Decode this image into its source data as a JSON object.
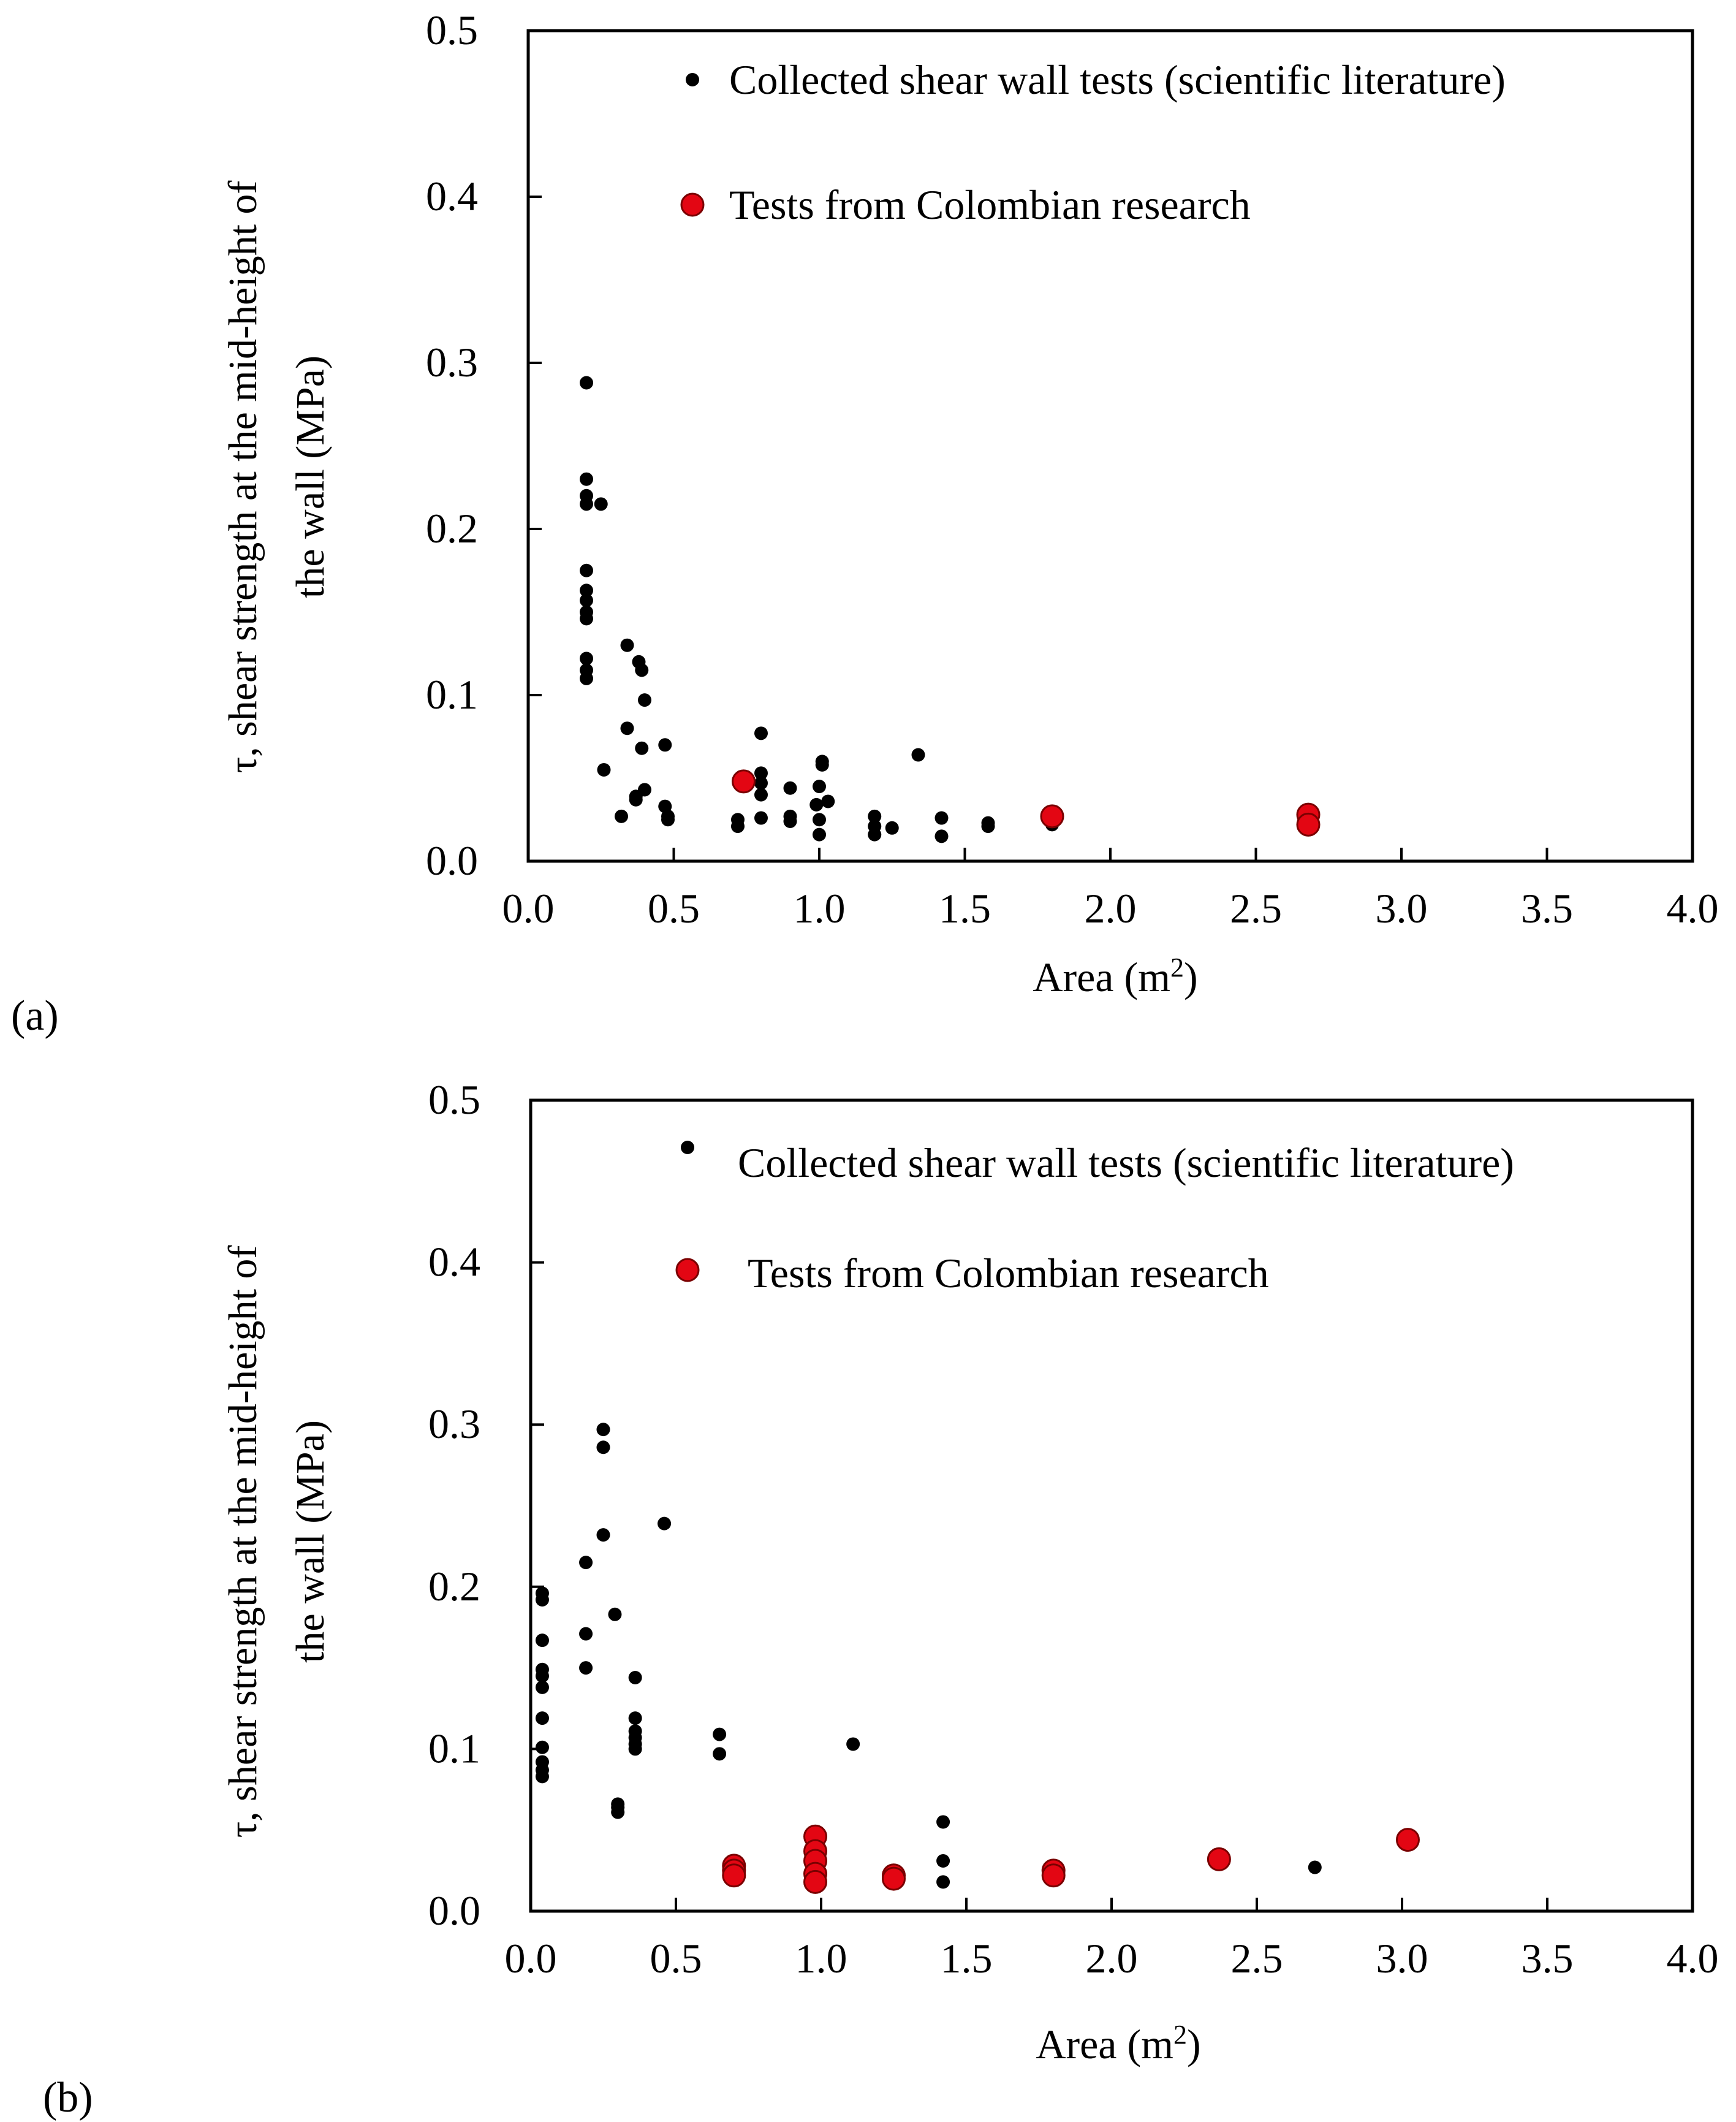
{
  "colors": {
    "literature": "#000000",
    "colombian": "#e30613",
    "colombian_stroke": "#7a0000",
    "axis": "#000000"
  },
  "chart_data": [
    {
      "type": "scatter",
      "panel_label": "(a)",
      "xlabel_text": "Area (m",
      "xlabel_sup": "2",
      "xlabel_close": ")",
      "ylabel_line1": "τ, shear strength at the mid-height of",
      "ylabel_line2": "the wall (MPa)",
      "xlim": [
        0,
        4
      ],
      "ylim": [
        0,
        0.5
      ],
      "x_ticks": [
        "0.0",
        "0.5",
        "1.0",
        "1.5",
        "2.0",
        "2.5",
        "3.0",
        "3.5",
        "4.0"
      ],
      "y_ticks": [
        "0.0",
        "0.1",
        "0.2",
        "0.3",
        "0.4",
        "0.5"
      ],
      "legend": [
        "Collected shear wall tests (scientific literature)",
        "Tests from Colombian research"
      ],
      "series": [
        {
          "name": "Collected shear wall tests (scientific literature)",
          "points": [
            [
              0.2,
              0.288
            ],
            [
              0.2,
              0.23
            ],
            [
              0.2,
              0.22
            ],
            [
              0.2,
              0.215
            ],
            [
              0.25,
              0.215
            ],
            [
              0.2,
              0.175
            ],
            [
              0.2,
              0.163
            ],
            [
              0.2,
              0.157
            ],
            [
              0.2,
              0.15
            ],
            [
              0.2,
              0.146
            ],
            [
              0.2,
              0.122
            ],
            [
              0.2,
              0.115
            ],
            [
              0.2,
              0.11
            ],
            [
              0.34,
              0.13
            ],
            [
              0.38,
              0.12
            ],
            [
              0.39,
              0.115
            ],
            [
              0.4,
              0.097
            ],
            [
              0.34,
              0.08
            ],
            [
              0.39,
              0.068
            ],
            [
              0.47,
              0.07
            ],
            [
              0.26,
              0.055
            ],
            [
              0.4,
              0.043
            ],
            [
              0.37,
              0.039
            ],
            [
              0.37,
              0.037
            ],
            [
              0.47,
              0.033
            ],
            [
              0.32,
              0.027
            ],
            [
              0.48,
              0.027
            ],
            [
              0.48,
              0.025
            ],
            [
              0.72,
              0.025
            ],
            [
              0.72,
              0.021
            ],
            [
              0.8,
              0.077
            ],
            [
              0.8,
              0.053
            ],
            [
              0.8,
              0.047
            ],
            [
              0.8,
              0.04
            ],
            [
              0.8,
              0.026
            ],
            [
              0.9,
              0.044
            ],
            [
              0.9,
              0.027
            ],
            [
              0.9,
              0.024
            ],
            [
              0.99,
              0.034
            ],
            [
              1.0,
              0.045
            ],
            [
              1.0,
              0.025
            ],
            [
              1.0,
              0.016
            ],
            [
              1.01,
              0.06
            ],
            [
              1.01,
              0.058
            ],
            [
              1.03,
              0.036
            ],
            [
              1.19,
              0.027
            ],
            [
              1.19,
              0.021
            ],
            [
              1.19,
              0.016
            ],
            [
              1.25,
              0.02
            ],
            [
              1.34,
              0.064
            ],
            [
              1.42,
              0.026
            ],
            [
              1.42,
              0.015
            ],
            [
              1.58,
              0.023
            ],
            [
              1.58,
              0.021
            ],
            [
              1.8,
              0.025
            ],
            [
              1.8,
              0.022
            ],
            [
              2.68,
              0.024
            ],
            [
              2.68,
              0.021
            ]
          ]
        },
        {
          "name": "Tests from Colombian research",
          "points": [
            [
              0.74,
              0.048
            ],
            [
              1.8,
              0.027
            ],
            [
              2.68,
              0.028
            ],
            [
              2.68,
              0.022
            ]
          ]
        }
      ]
    },
    {
      "type": "scatter",
      "panel_label": "(b)",
      "xlabel_text": "Area (m",
      "xlabel_sup": "2",
      "xlabel_close": ")",
      "ylabel_line1": "τ, shear strength at the mid-height of",
      "ylabel_line2": "the wall (MPa)",
      "xlim": [
        0,
        4
      ],
      "ylim": [
        0,
        0.5
      ],
      "x_ticks": [
        "0.0",
        "0.5",
        "1.0",
        "1.5",
        "2.0",
        "2.5",
        "3.0",
        "3.5",
        "4.0"
      ],
      "y_ticks": [
        "0.0",
        "0.1",
        "0.2",
        "0.3",
        "0.4",
        "0.5"
      ],
      "legend": [
        "Collected shear wall tests (scientific literature)",
        "Tests from Colombian research"
      ],
      "series": [
        {
          "name": "Collected shear wall tests (scientific literature)",
          "points": [
            [
              0.04,
              0.196
            ],
            [
              0.04,
              0.192
            ],
            [
              0.04,
              0.167
            ],
            [
              0.04,
              0.149
            ],
            [
              0.04,
              0.145
            ],
            [
              0.04,
              0.138
            ],
            [
              0.04,
              0.119
            ],
            [
              0.04,
              0.101
            ],
            [
              0.04,
              0.092
            ],
            [
              0.04,
              0.087
            ],
            [
              0.04,
              0.083
            ],
            [
              0.19,
              0.215
            ],
            [
              0.19,
              0.171
            ],
            [
              0.19,
              0.15
            ],
            [
              0.25,
              0.297
            ],
            [
              0.25,
              0.286
            ],
            [
              0.25,
              0.232
            ],
            [
              0.29,
              0.183
            ],
            [
              0.3,
              0.066
            ],
            [
              0.3,
              0.064
            ],
            [
              0.3,
              0.061
            ],
            [
              0.36,
              0.144
            ],
            [
              0.36,
              0.119
            ],
            [
              0.36,
              0.111
            ],
            [
              0.36,
              0.107
            ],
            [
              0.36,
              0.103
            ],
            [
              0.36,
              0.1
            ],
            [
              0.46,
              0.239
            ],
            [
              0.65,
              0.109
            ],
            [
              0.65,
              0.097
            ],
            [
              1.11,
              0.103
            ],
            [
              1.42,
              0.055
            ],
            [
              1.42,
              0.031
            ],
            [
              1.42,
              0.018
            ],
            [
              2.7,
              0.027
            ]
          ]
        },
        {
          "name": "Tests from Colombian research",
          "points": [
            [
              0.7,
              0.028
            ],
            [
              0.7,
              0.025
            ],
            [
              0.7,
              0.022
            ],
            [
              0.98,
              0.046
            ],
            [
              0.98,
              0.037
            ],
            [
              0.98,
              0.031
            ],
            [
              0.98,
              0.023
            ],
            [
              0.98,
              0.018
            ],
            [
              1.25,
              0.022
            ],
            [
              1.25,
              0.02
            ],
            [
              1.8,
              0.025
            ],
            [
              1.8,
              0.022
            ],
            [
              2.37,
              0.032
            ],
            [
              3.02,
              0.044
            ]
          ]
        }
      ]
    }
  ]
}
